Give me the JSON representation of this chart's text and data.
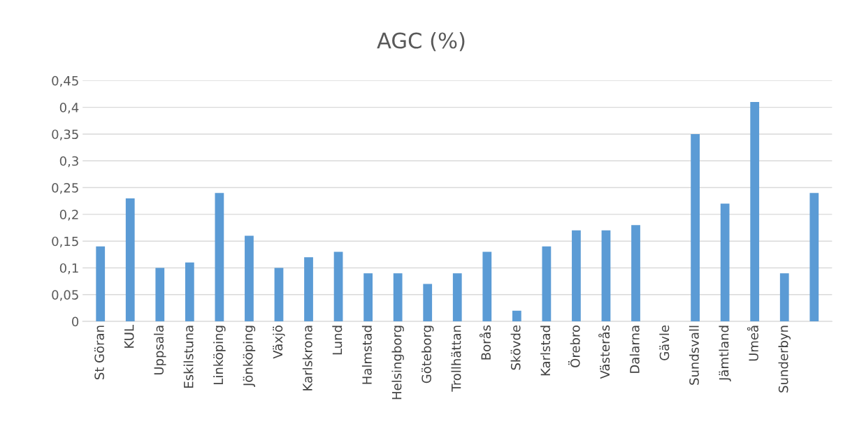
{
  "chart_data": {
    "type": "bar",
    "title": "AGC (%)",
    "categories": [
      "St Göran",
      "KUL",
      "Uppsala",
      "Eskilstuna",
      "Linköping",
      "Jönköping",
      "Växjö",
      "Karlskrona",
      "Lund",
      "Halmstad",
      "Helsingborg",
      "Göteborg",
      "Trollhättan",
      "Borås",
      "Skövde",
      "Karlstad",
      "Örebro",
      "Västerås",
      "Dalarna",
      "Gävle",
      "Sundsvall",
      "Jämtland",
      "Umeå",
      "Sunderbyn",
      null
    ],
    "values": [
      0.14,
      0.23,
      0.1,
      0.11,
      0.24,
      0.16,
      0.1,
      0.12,
      0.13,
      0.09,
      0.09,
      0.07,
      0.09,
      0.13,
      0.02,
      0.14,
      0.17,
      0.17,
      0.18,
      null,
      0.35,
      0.22,
      0.41,
      0.09,
      0.24
    ],
    "color": "#5b9bd5",
    "ylim": [
      0,
      0.45
    ],
    "yticks": [
      0,
      {
        "value": 0.05,
        "label": "0,05"
      },
      {
        "value": 0.1,
        "label": "0,1"
      },
      {
        "value": 0.15,
        "label": "0,15"
      },
      {
        "value": 0.2,
        "label": "0,2"
      },
      {
        "value": 0.25,
        "label": "0,25"
      },
      {
        "value": 0.3,
        "label": "0,3"
      },
      {
        "value": 0.35,
        "label": "0,35"
      },
      {
        "value": 0.4,
        "label": "0,4"
      },
      {
        "value": 0.45,
        "label": "0,45"
      }
    ],
    "grid": "y"
  }
}
